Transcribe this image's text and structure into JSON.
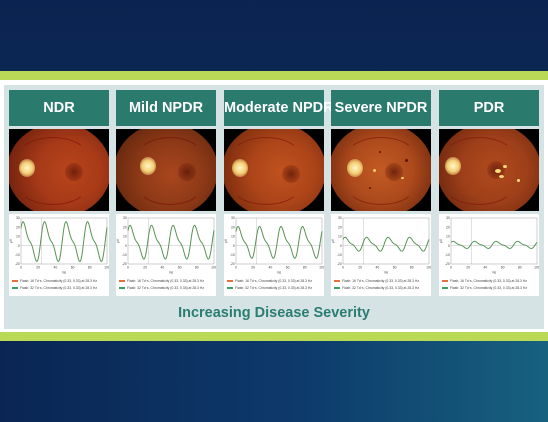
{
  "columns": [
    {
      "title": "NDR",
      "y_ticks": [
        "30",
        "20",
        "10",
        "0",
        "-10",
        "-20"
      ],
      "x_ticks": [
        "0",
        "20",
        "40",
        "60",
        "80",
        "100"
      ],
      "x_unit": "ms",
      "y_unit": "µV",
      "legend": [
        "Flash: 16 Td·s, Chromaticity (0.33, 0.33) at 28.3 Hz",
        "Flash: 32 Td·s, Chromaticity (0.33, 0.33) at 28.3 Hz"
      ]
    },
    {
      "title": "Mild NPDR",
      "y_ticks": [
        "30",
        "20",
        "10",
        "0",
        "-10",
        "-20"
      ],
      "x_ticks": [
        "0",
        "20",
        "40",
        "60",
        "80",
        "100"
      ],
      "x_unit": "ms",
      "y_unit": "µV",
      "legend": [
        "Flash: 16 Td·s, Chromaticity (0.33, 0.33) at 28.3 Hz",
        "Flash: 32 Td·s, Chromaticity (0.33, 0.33) at 28.3 Hz"
      ]
    },
    {
      "title": "Moderate NPDR",
      "y_ticks": [
        "30",
        "20",
        "10",
        "0",
        "-10",
        "-20"
      ],
      "x_ticks": [
        "0",
        "20",
        "40",
        "60",
        "80",
        "100"
      ],
      "x_unit": "ms",
      "y_unit": "µV",
      "legend": [
        "Flash: 16 Td·s, Chromaticity (0.33, 0.33) at 28.3 Hz",
        "Flash: 32 Td·s, Chromaticity (0.33, 0.33) at 28.3 Hz"
      ]
    },
    {
      "title": "Severe NPDR",
      "y_ticks": [
        "30",
        "20",
        "10",
        "0",
        "-10",
        "-20"
      ],
      "x_ticks": [
        "0",
        "20",
        "40",
        "60",
        "80",
        "100"
      ],
      "x_unit": "ms",
      "y_unit": "µV",
      "legend": [
        "Flash: 16 Td·s, Chromaticity (0.33, 0.33) at 28.3 Hz",
        "Flash: 32 Td·s, Chromaticity (0.33, 0.33) at 28.3 Hz"
      ]
    },
    {
      "title": "PDR",
      "y_ticks": [
        "30",
        "20",
        "10",
        "0",
        "-10",
        "-20"
      ],
      "x_ticks": [
        "0",
        "20",
        "40",
        "60",
        "80",
        "100"
      ],
      "x_unit": "ms",
      "y_unit": "µV",
      "legend": [
        "Flash: 16 Td·s, Chromaticity (0.33, 0.33) at 28.3 Hz",
        "Flash: 32 Td·s, Chromaticity (0.33, 0.33) at 28.3 Hz"
      ]
    }
  ],
  "caption": "Increasing Disease Severity",
  "colors": {
    "header_bg": "#2a7a6e",
    "caption": "#2b7d72",
    "lime": "#b9d957",
    "trace_16": "#e0733a",
    "trace_32": "#3aa064"
  }
}
